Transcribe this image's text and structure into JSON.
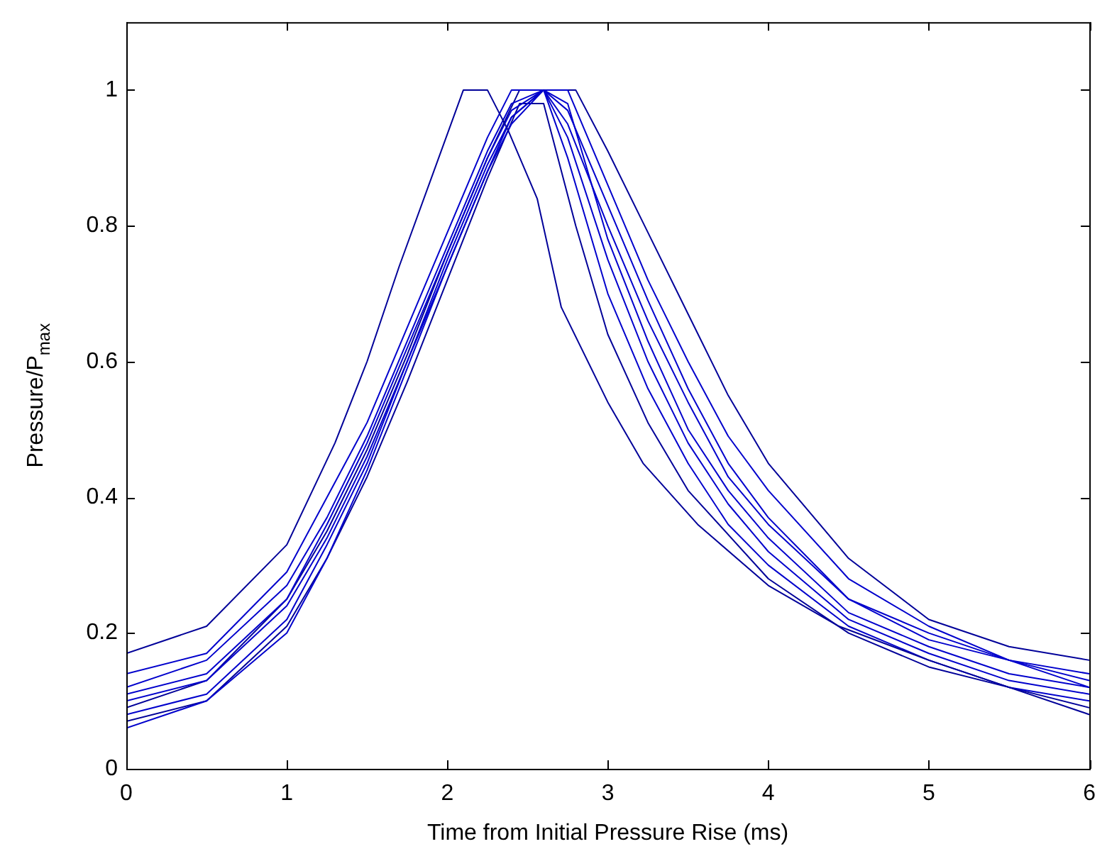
{
  "chart_data": {
    "type": "line",
    "xlabel": "Time from Initial Pressure Rise (ms)",
    "ylabel": "Pressure/P$_{max}$",
    "xlim": [
      0,
      6
    ],
    "xticks": [
      0,
      1,
      2,
      3,
      4,
      5,
      6
    ],
    "ylim": [
      0,
      1.1
    ],
    "yticks": [
      0,
      0.2,
      0.4,
      0.6,
      0.8,
      1
    ],
    "grid": false,
    "legend": false,
    "marker": "none",
    "line_style": "solid",
    "series": [
      {
        "color": "#000099",
        "x": [
          0,
          0.5,
          1,
          1.3,
          1.5,
          1.7,
          1.9,
          2.1,
          2.25,
          2.38,
          2.56,
          2.71,
          3,
          3.22,
          3.56,
          4,
          4.44,
          5,
          5.5,
          6
        ],
        "values": [
          0.17,
          0.21,
          0.33,
          0.48,
          0.6,
          0.74,
          0.87,
          1,
          1,
          0.94,
          0.84,
          0.68,
          0.54,
          0.45,
          0.36,
          0.27,
          0.21,
          0.16,
          0.12,
          0.08
        ]
      },
      {
        "color": "#0000cc",
        "x": [
          0,
          0.5,
          1,
          1.25,
          1.5,
          1.75,
          2,
          2.25,
          2.4,
          2.6,
          2.75,
          3,
          3.25,
          3.5,
          3.75,
          4,
          4.5,
          5,
          5.5,
          6
        ],
        "values": [
          0.14,
          0.17,
          0.29,
          0.4,
          0.51,
          0.65,
          0.79,
          0.93,
          1,
          1,
          0.95,
          0.8,
          0.66,
          0.54,
          0.43,
          0.36,
          0.25,
          0.19,
          0.16,
          0.13
        ]
      },
      {
        "color": "#0000cc",
        "x": [
          0,
          0.5,
          1,
          1.25,
          1.5,
          1.75,
          2,
          2.25,
          2.4,
          2.6,
          2.75,
          3,
          3.25,
          3.5,
          3.75,
          4,
          4.5,
          5,
          5.5,
          6
        ],
        "values": [
          0.12,
          0.16,
          0.27,
          0.37,
          0.49,
          0.63,
          0.77,
          0.91,
          0.98,
          1,
          0.97,
          0.83,
          0.69,
          0.56,
          0.45,
          0.37,
          0.25,
          0.2,
          0.16,
          0.14
        ]
      },
      {
        "color": "#0000cc",
        "x": [
          0,
          0.5,
          1,
          1.25,
          1.5,
          1.75,
          2,
          2.25,
          2.4,
          2.6,
          2.75,
          3,
          3.25,
          3.5,
          3.75,
          4,
          4.5,
          5,
          5.5,
          6
        ],
        "values": [
          0.11,
          0.14,
          0.25,
          0.36,
          0.48,
          0.62,
          0.76,
          0.9,
          0.97,
          1,
          0.98,
          0.78,
          0.63,
          0.5,
          0.41,
          0.34,
          0.23,
          0.18,
          0.14,
          0.12
        ]
      },
      {
        "color": "#0000cc",
        "x": [
          0,
          0.5,
          1,
          1.25,
          1.5,
          1.75,
          2,
          2.25,
          2.4,
          2.6,
          2.75,
          3,
          3.25,
          3.5,
          3.75,
          4,
          4.5,
          5,
          5.5,
          6
        ],
        "values": [
          0.1,
          0.13,
          0.24,
          0.34,
          0.46,
          0.6,
          0.75,
          0.89,
          0.96,
          1,
          0.93,
          0.75,
          0.6,
          0.48,
          0.39,
          0.32,
          0.22,
          0.17,
          0.13,
          0.11
        ]
      },
      {
        "color": "#0000cc",
        "x": [
          0,
          0.5,
          1,
          1.25,
          1.5,
          1.75,
          2,
          2.25,
          2.4,
          2.6,
          2.75,
          3,
          3.25,
          3.5,
          3.75,
          4,
          4.5,
          5,
          5.5,
          6
        ],
        "values": [
          0.08,
          0.11,
          0.22,
          0.33,
          0.45,
          0.6,
          0.74,
          0.88,
          0.95,
          1,
          0.9,
          0.7,
          0.56,
          0.45,
          0.36,
          0.3,
          0.21,
          0.16,
          0.12,
          0.1
        ]
      },
      {
        "color": "#0000cc",
        "x": [
          0,
          0.5,
          1,
          1.25,
          1.5,
          1.75,
          2,
          2.25,
          2.4,
          2.6,
          2.75,
          3,
          3.25,
          3.5,
          3.75,
          4,
          4.5,
          5,
          5.5,
          6
        ],
        "values": [
          0.06,
          0.1,
          0.2,
          0.31,
          0.44,
          0.59,
          0.74,
          0.88,
          0.96,
          1,
          1,
          0.86,
          0.72,
          0.6,
          0.49,
          0.41,
          0.28,
          0.21,
          0.16,
          0.12
        ]
      },
      {
        "color": "#000099",
        "x": [
          0,
          0.5,
          1,
          1.25,
          1.5,
          1.75,
          2,
          2.25,
          2.45,
          2.8,
          3,
          3.25,
          3.5,
          3.75,
          4,
          4.5,
          5,
          5.5,
          6
        ],
        "values": [
          0.09,
          0.13,
          0.25,
          0.35,
          0.47,
          0.61,
          0.76,
          0.9,
          1,
          1,
          0.91,
          0.79,
          0.67,
          0.55,
          0.45,
          0.31,
          0.22,
          0.18,
          0.16
        ]
      },
      {
        "color": "#000099",
        "x": [
          0,
          0.5,
          1,
          1.25,
          1.5,
          1.75,
          2,
          2.25,
          2.45,
          2.6,
          2.8,
          3,
          3.25,
          3.5,
          4,
          4.5,
          5,
          5.5,
          6
        ],
        "values": [
          0.07,
          0.1,
          0.21,
          0.31,
          0.43,
          0.57,
          0.72,
          0.87,
          0.98,
          0.98,
          0.8,
          0.64,
          0.51,
          0.41,
          0.28,
          0.2,
          0.15,
          0.12,
          0.09
        ]
      }
    ]
  }
}
